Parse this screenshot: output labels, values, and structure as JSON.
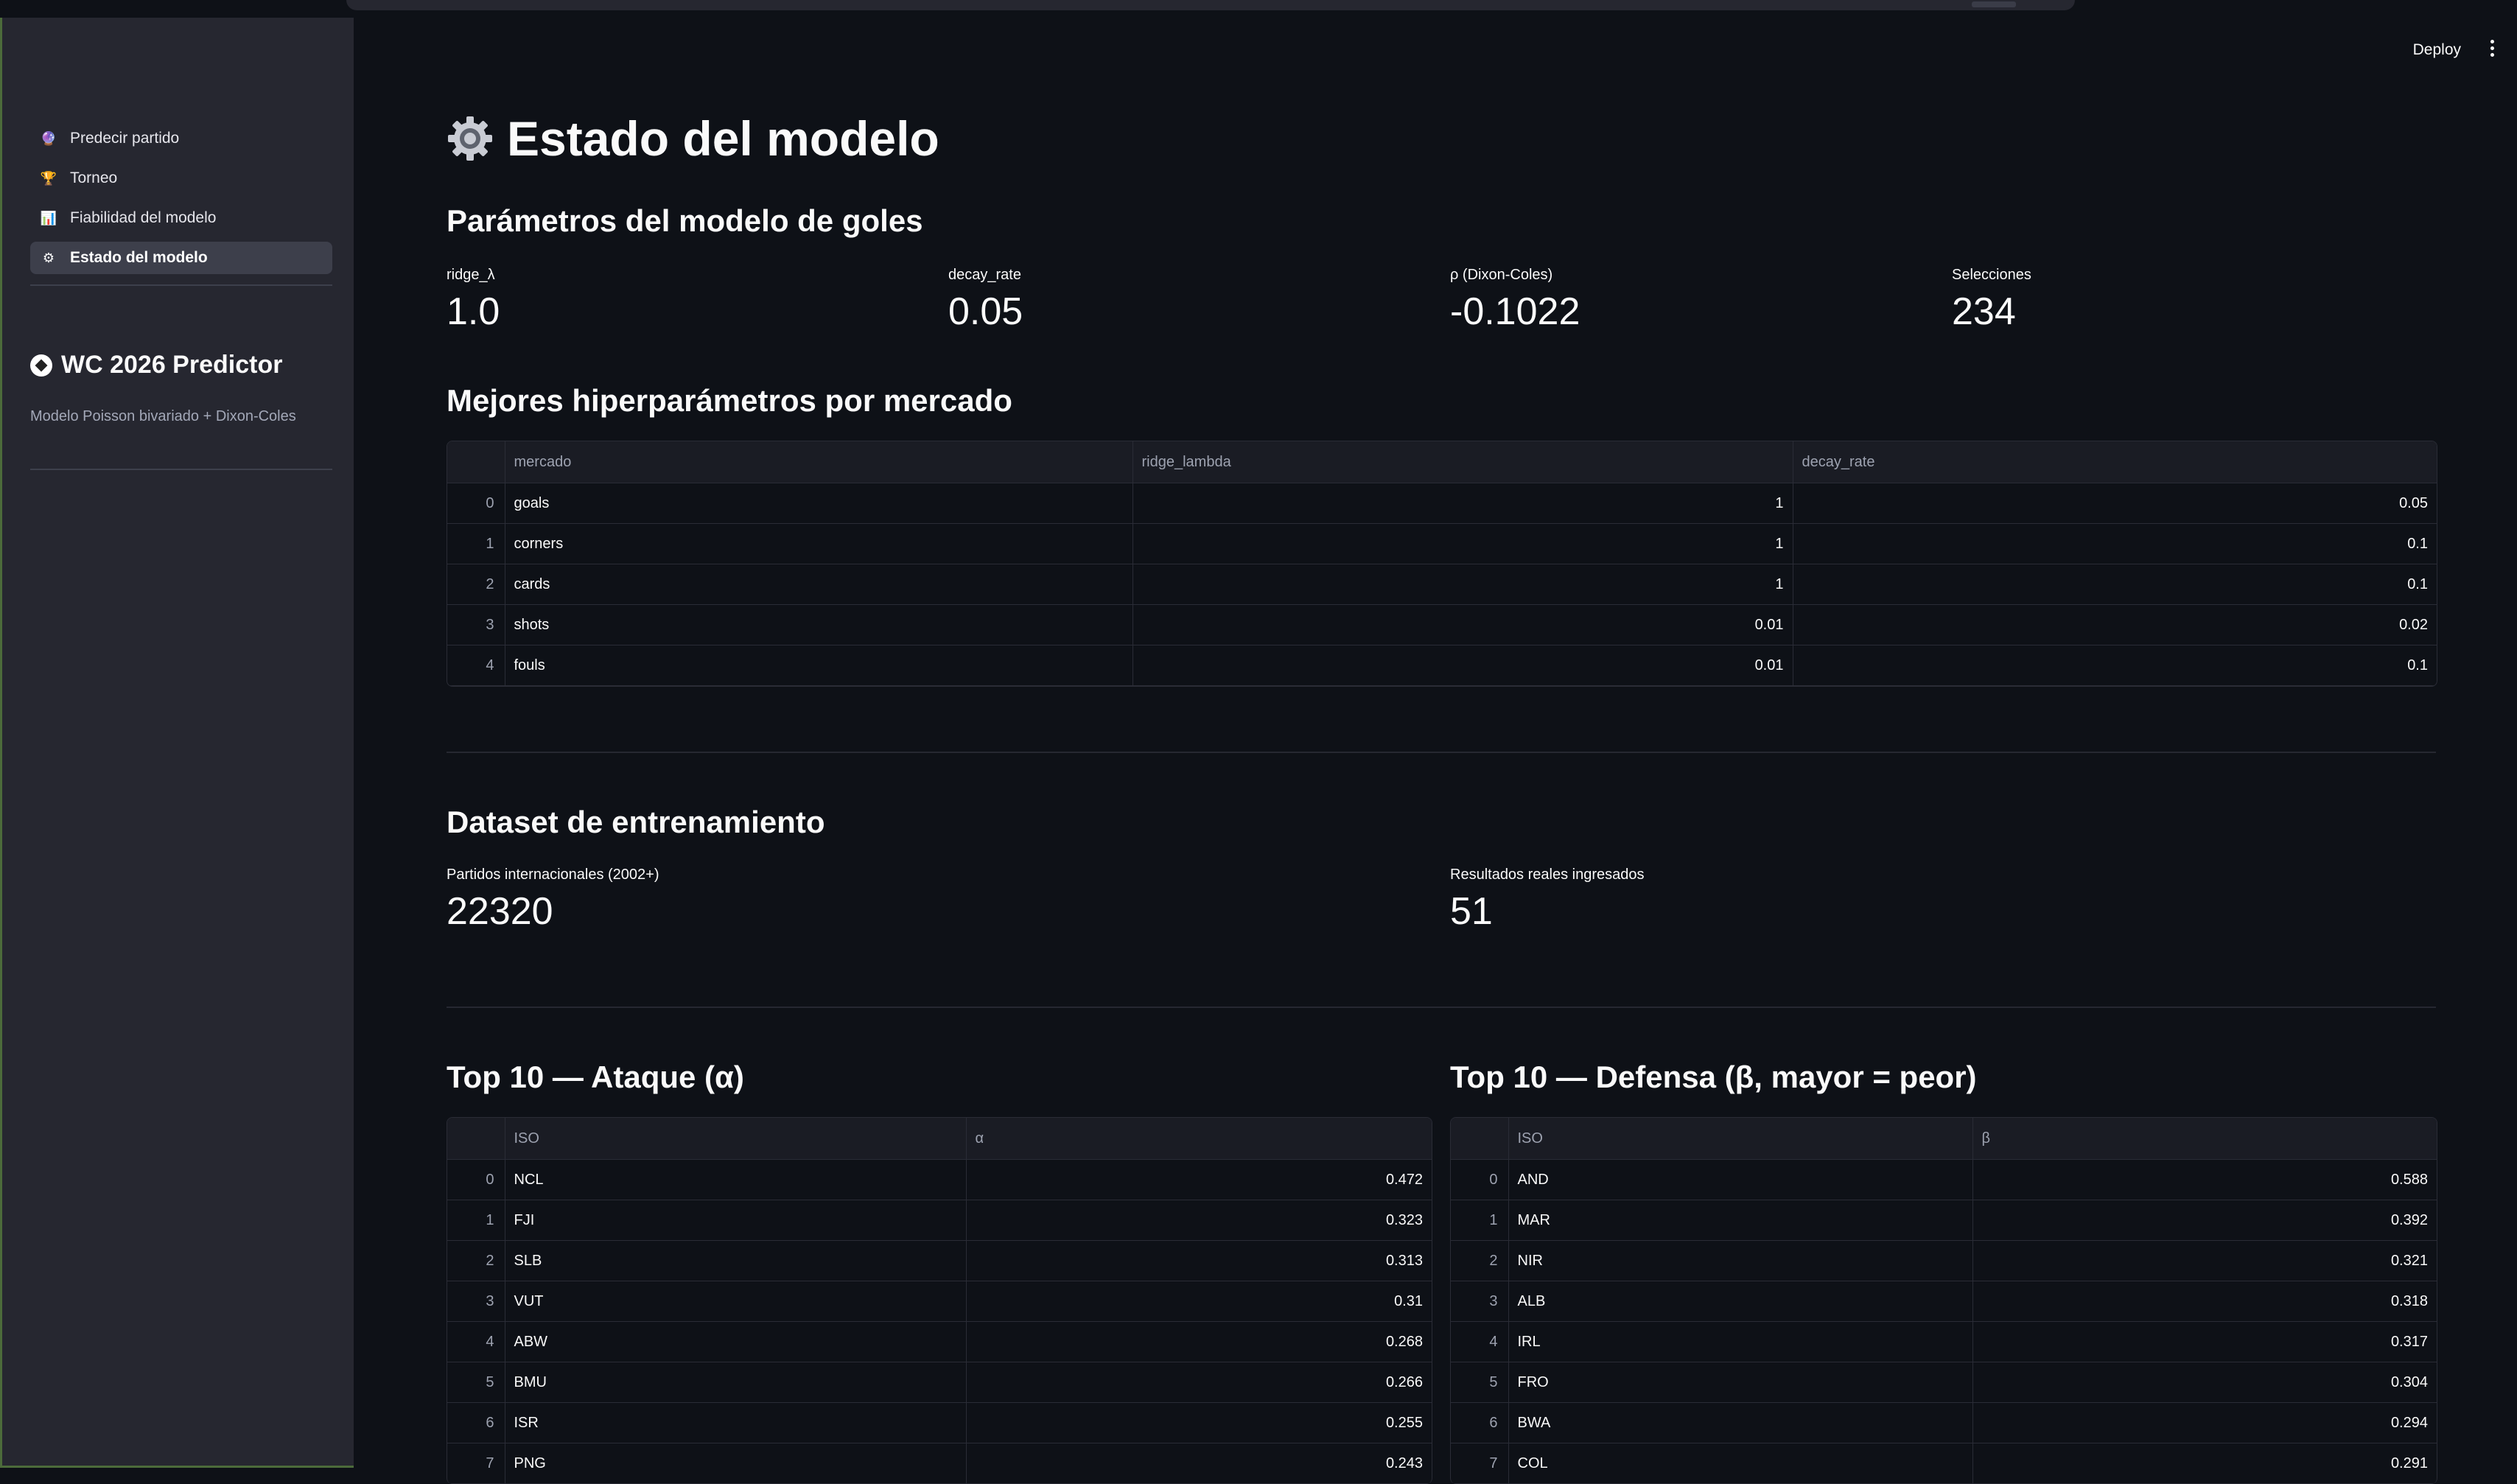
{
  "sidebar": {
    "nav": [
      {
        "icon": "crystal-ball-icon",
        "glyph": "🔮",
        "label": "Predecir partido"
      },
      {
        "icon": "trophy-icon",
        "glyph": "🏆",
        "label": "Torneo"
      },
      {
        "icon": "bar-chart-icon",
        "glyph": "📊",
        "label": "Fiabilidad del modelo"
      },
      {
        "icon": "gear-icon",
        "glyph": "⚙",
        "label": "Estado del modelo"
      }
    ],
    "brand_title": "WC 2026 Predictor",
    "brand_subtitle": "Modelo Poisson bivariado + Dixon-Coles"
  },
  "header": {
    "deploy_label": "Deploy"
  },
  "page": {
    "title": "Estado del modelo",
    "goal_params": {
      "heading": "Parámetros del modelo de goles",
      "metrics": [
        {
          "label": "ridge_λ",
          "value": "1.0"
        },
        {
          "label": "decay_rate",
          "value": "0.05"
        },
        {
          "label": "ρ (Dixon-Coles)",
          "value": "-0.1022"
        },
        {
          "label": "Selecciones",
          "value": "234"
        }
      ]
    },
    "best_hparams": {
      "heading": "Mejores hiperparámetros por mercado",
      "columns": [
        "mercado",
        "ridge_lambda",
        "decay_rate"
      ],
      "rows": [
        {
          "idx": "0",
          "mercado": "goals",
          "ridge_lambda": "1",
          "decay_rate": "0.05"
        },
        {
          "idx": "1",
          "mercado": "corners",
          "ridge_lambda": "1",
          "decay_rate": "0.1"
        },
        {
          "idx": "2",
          "mercado": "cards",
          "ridge_lambda": "1",
          "decay_rate": "0.1"
        },
        {
          "idx": "3",
          "mercado": "shots",
          "ridge_lambda": "0.01",
          "decay_rate": "0.02"
        },
        {
          "idx": "4",
          "mercado": "fouls",
          "ridge_lambda": "0.01",
          "decay_rate": "0.1"
        }
      ]
    },
    "dataset": {
      "heading": "Dataset de entrenamiento",
      "metrics": [
        {
          "label": "Partidos internacionales (2002+)",
          "value": "22320"
        },
        {
          "label": "Resultados reales ingresados",
          "value": "51"
        }
      ]
    },
    "attack": {
      "heading": "Top 10 — Ataque (α)",
      "columns": [
        "ISO",
        "α"
      ],
      "rows": [
        {
          "idx": "0",
          "iso": "NCL",
          "v": "0.472"
        },
        {
          "idx": "1",
          "iso": "FJI",
          "v": "0.323"
        },
        {
          "idx": "2",
          "iso": "SLB",
          "v": "0.313"
        },
        {
          "idx": "3",
          "iso": "VUT",
          "v": "0.31"
        },
        {
          "idx": "4",
          "iso": "ABW",
          "v": "0.268"
        },
        {
          "idx": "5",
          "iso": "BMU",
          "v": "0.266"
        },
        {
          "idx": "6",
          "iso": "ISR",
          "v": "0.255"
        },
        {
          "idx": "7",
          "iso": "PNG",
          "v": "0.243"
        }
      ]
    },
    "defense": {
      "heading": "Top 10 — Defensa (β, mayor = peor)",
      "columns": [
        "ISO",
        "β"
      ],
      "rows": [
        {
          "idx": "0",
          "iso": "AND",
          "v": "0.588"
        },
        {
          "idx": "1",
          "iso": "MAR",
          "v": "0.392"
        },
        {
          "idx": "2",
          "iso": "NIR",
          "v": "0.321"
        },
        {
          "idx": "3",
          "iso": "ALB",
          "v": "0.318"
        },
        {
          "idx": "4",
          "iso": "IRL",
          "v": "0.317"
        },
        {
          "idx": "5",
          "iso": "FRO",
          "v": "0.304"
        },
        {
          "idx": "6",
          "iso": "BWA",
          "v": "0.294"
        },
        {
          "idx": "7",
          "iso": "COL",
          "v": "0.291"
        }
      ]
    }
  }
}
